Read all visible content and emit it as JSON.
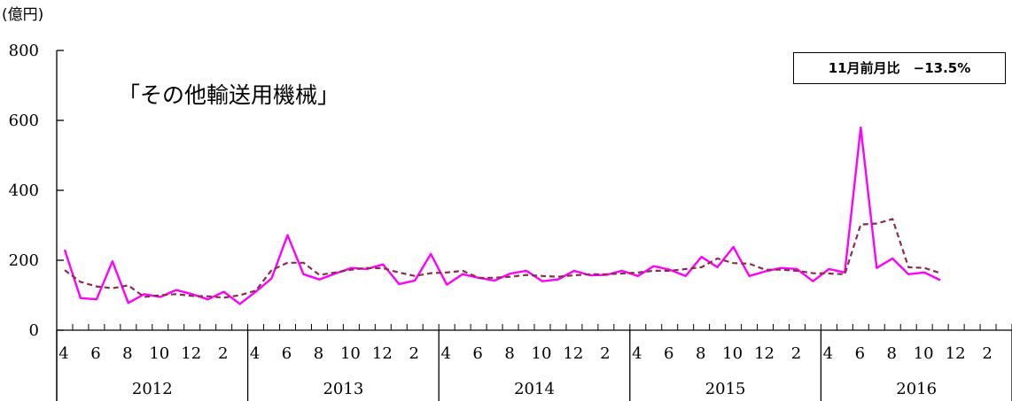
{
  "unit_label": "(億円)",
  "title": "「その他輸送用機械」",
  "badge": "11月前月比　−13.5%",
  "colors": {
    "actual": "#ff00ff",
    "trend": "#8b2e4a",
    "axis": "#000000"
  },
  "chart_data": {
    "type": "line",
    "title": "「その他輸送用機械」",
    "ylabel": "(億円)",
    "ylim": [
      0,
      800
    ],
    "yticks": [
      0,
      200,
      400,
      600,
      800
    ],
    "month_tick_labels": [
      "4",
      "6",
      "8",
      "10",
      "12",
      "2",
      "4",
      "6",
      "8",
      "10",
      "12",
      "2",
      "4",
      "6",
      "8",
      "10",
      "12",
      "2",
      "4",
      "6",
      "8",
      "10",
      "12",
      "2",
      "4",
      "6",
      "8",
      "10",
      "12",
      "2"
    ],
    "years": [
      "2012",
      "2013",
      "2014",
      "2015",
      "2016"
    ],
    "x_start": "2012-04",
    "x_end": "2017-03",
    "grid": false,
    "series": [
      {
        "name": "",
        "style": "solid",
        "values": [
          230,
          92,
          88,
          197,
          78,
          103,
          95,
          115,
          103,
          88,
          110,
          75,
          110,
          148,
          272,
          160,
          145,
          162,
          178,
          175,
          188,
          132,
          142,
          218,
          130,
          160,
          150,
          142,
          162,
          170,
          140,
          145,
          170,
          157,
          158,
          170,
          155,
          183,
          173,
          155,
          210,
          180,
          238,
          155,
          168,
          178,
          175,
          140,
          175,
          165,
          580,
          178,
          205,
          160,
          165,
          143
        ]
      },
      {
        "name": "",
        "style": "dashed",
        "values": [
          172,
          138,
          125,
          120,
          128,
          95,
          100,
          103,
          98,
          97,
          93,
          100,
          113,
          172,
          193,
          193,
          158,
          165,
          173,
          178,
          177,
          165,
          155,
          163,
          165,
          170,
          150,
          150,
          153,
          158,
          155,
          153,
          157,
          160,
          160,
          162,
          165,
          170,
          170,
          175,
          180,
          205,
          192,
          190,
          173,
          173,
          170,
          163,
          162,
          160,
          302,
          305,
          318,
          180,
          178,
          163
        ]
      }
    ]
  }
}
